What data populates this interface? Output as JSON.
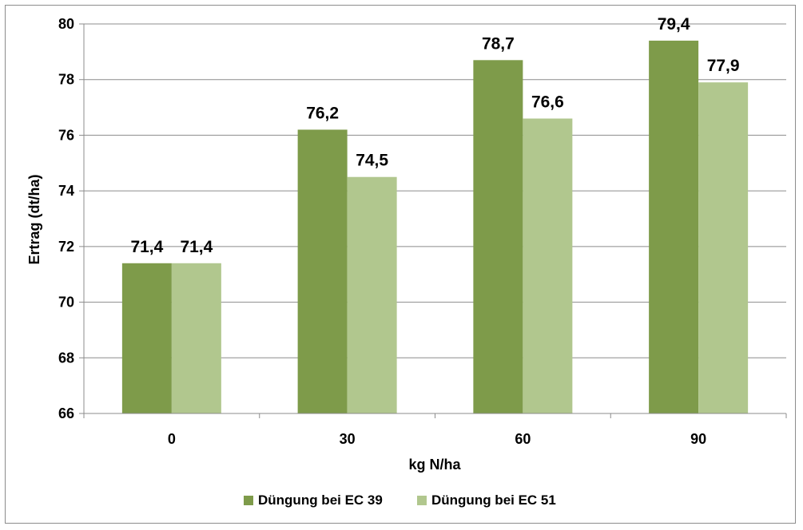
{
  "chart_data": {
    "type": "bar",
    "title": "",
    "xlabel": "kg N/ha",
    "ylabel": "Ertrag  (dt/ha)",
    "categories": [
      "0",
      "30",
      "60",
      "90"
    ],
    "ylim": [
      66,
      80
    ],
    "yticks": [
      66,
      68,
      70,
      72,
      74,
      76,
      78,
      80
    ],
    "grid": true,
    "legend_position": "bottom",
    "series": [
      {
        "name": "Düngung bei EC 39",
        "color": "#7e9b4a",
        "values": [
          71.4,
          76.2,
          78.7,
          79.4
        ],
        "labels": [
          "71,4",
          "76,2",
          "78,7",
          "79,4"
        ]
      },
      {
        "name": "Düngung bei EC 51",
        "color": "#b1c78e",
        "values": [
          71.4,
          74.5,
          76.6,
          77.9
        ],
        "labels": [
          "71,4",
          "74,5",
          "76,6",
          "77,9"
        ]
      }
    ]
  }
}
